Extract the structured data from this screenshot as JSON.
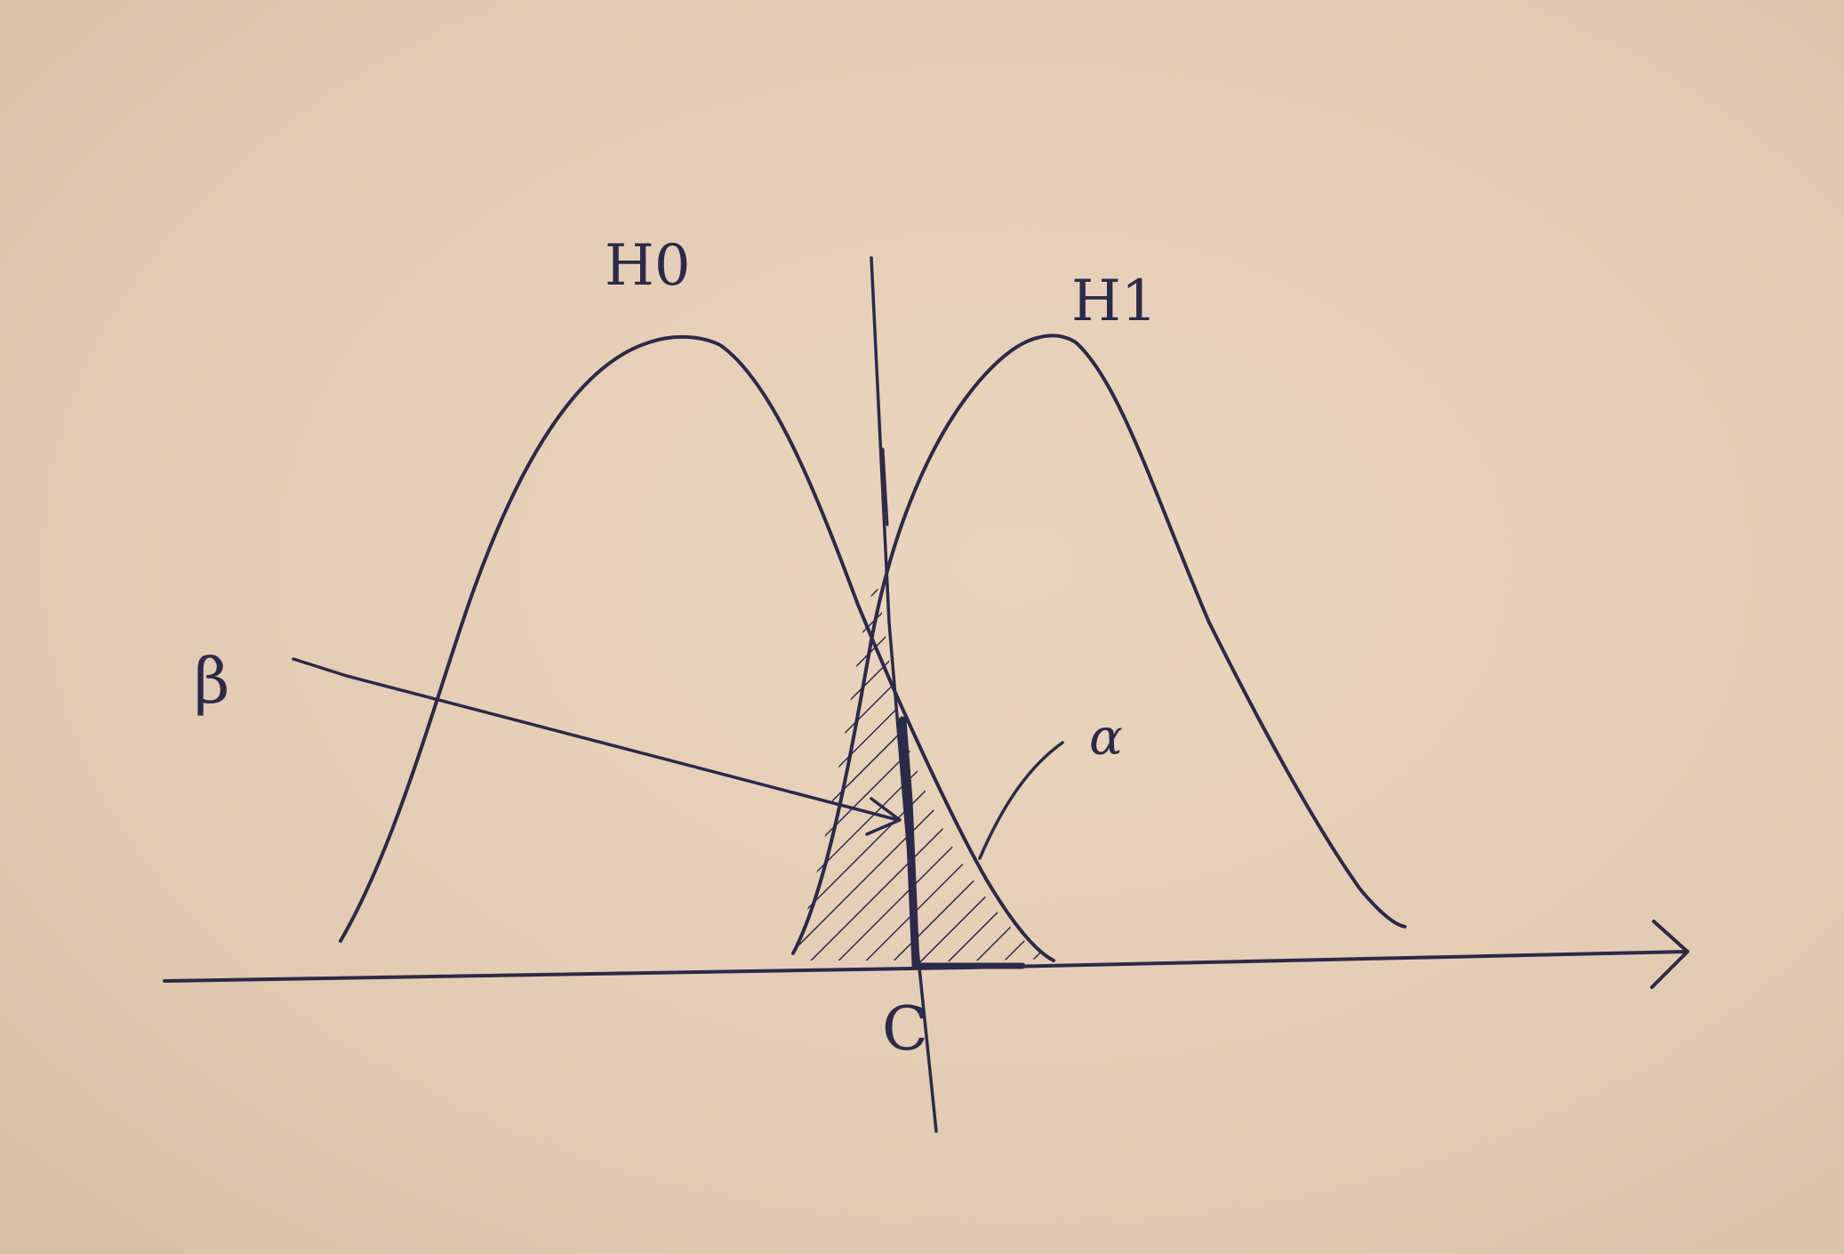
{
  "labels": {
    "h0": "H0",
    "h1": "H1",
    "beta": "β",
    "alpha": "α",
    "critical": "C"
  },
  "colors": {
    "paper": "#e2ccb3",
    "ink": "#2b2a4a"
  }
}
